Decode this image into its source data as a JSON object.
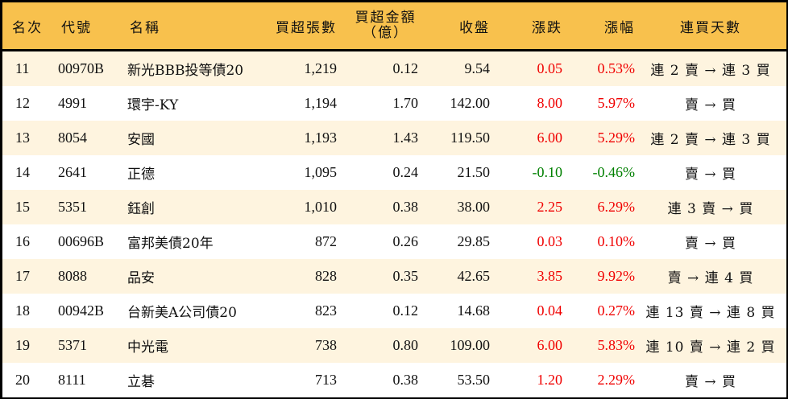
{
  "header": {
    "rank": "名次",
    "code": "代號",
    "name": "名稱",
    "net_buy_volume": "買超張數",
    "net_buy_amount_line1": "買超金額",
    "net_buy_amount_line2": "（億）",
    "close": "收盤",
    "change": "漲跌",
    "change_pct": "漲幅",
    "streak": "連買天數"
  },
  "colors": {
    "header_bg": "#F8C14D",
    "row_odd_bg": "#FEF4DF",
    "row_even_bg": "#FFFFFF",
    "up": "#F00000",
    "down": "#008000",
    "border": "#000000"
  },
  "rows": [
    {
      "rank": "11",
      "code": "00970B",
      "name": "新光BBB投等債20",
      "volume": "1,219",
      "amount": "0.12",
      "close": "9.54",
      "change": "0.05",
      "pct": "0.53%",
      "streak": "連 2 賣 → 連 3 買",
      "dir": "up"
    },
    {
      "rank": "12",
      "code": "4991",
      "name": "環宇-KY",
      "volume": "1,194",
      "amount": "1.70",
      "close": "142.00",
      "change": "8.00",
      "pct": "5.97%",
      "streak": "賣 → 買",
      "dir": "up"
    },
    {
      "rank": "13",
      "code": "8054",
      "name": "安國",
      "volume": "1,193",
      "amount": "1.43",
      "close": "119.50",
      "change": "6.00",
      "pct": "5.29%",
      "streak": "連 2 賣 → 連 3 買",
      "dir": "up"
    },
    {
      "rank": "14",
      "code": "2641",
      "name": "正德",
      "volume": "1,095",
      "amount": "0.24",
      "close": "21.50",
      "change": "-0.10",
      "pct": "-0.46%",
      "streak": "賣 → 買",
      "dir": "down"
    },
    {
      "rank": "15",
      "code": "5351",
      "name": "鈺創",
      "volume": "1,010",
      "amount": "0.38",
      "close": "38.00",
      "change": "2.25",
      "pct": "6.29%",
      "streak": "連 3 賣 → 買",
      "dir": "up"
    },
    {
      "rank": "16",
      "code": "00696B",
      "name": "富邦美債20年",
      "volume": "872",
      "amount": "0.26",
      "close": "29.85",
      "change": "0.03",
      "pct": "0.10%",
      "streak": "賣 → 買",
      "dir": "up"
    },
    {
      "rank": "17",
      "code": "8088",
      "name": "品安",
      "volume": "828",
      "amount": "0.35",
      "close": "42.65",
      "change": "3.85",
      "pct": "9.92%",
      "streak": "賣 → 連 4 買",
      "dir": "up"
    },
    {
      "rank": "18",
      "code": "00942B",
      "name": "台新美A公司債20",
      "volume": "823",
      "amount": "0.12",
      "close": "14.68",
      "change": "0.04",
      "pct": "0.27%",
      "streak": "連 13 賣 → 連 8 買",
      "dir": "up"
    },
    {
      "rank": "19",
      "code": "5371",
      "name": "中光電",
      "volume": "738",
      "amount": "0.80",
      "close": "109.00",
      "change": "6.00",
      "pct": "5.83%",
      "streak": "連 10 賣 → 連 2 買",
      "dir": "up"
    },
    {
      "rank": "20",
      "code": "8111",
      "name": "立碁",
      "volume": "713",
      "amount": "0.38",
      "close": "53.50",
      "change": "1.20",
      "pct": "2.29%",
      "streak": "賣 → 買",
      "dir": "up"
    }
  ]
}
